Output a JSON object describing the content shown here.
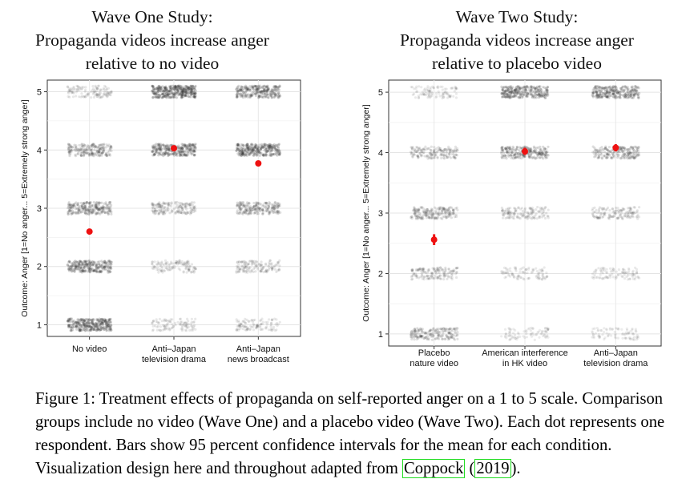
{
  "chart_data": [
    {
      "type": "scatter",
      "title_lines": [
        "Wave One Study:",
        "Propaganda videos increase anger",
        "relative to no video"
      ],
      "ylabel": "Outcome: Anger [1=No anger... 5=Extremely strong anger]",
      "xlabel": "",
      "ylim": [
        0.8,
        5.2
      ],
      "y_ticks": [
        "1",
        "2",
        "3",
        "4",
        "5"
      ],
      "grid": true,
      "categories": [
        {
          "label_lines": [
            "No video"
          ],
          "mean": 2.6,
          "ci": [
            2.56,
            2.64
          ],
          "darkness": {
            "1": 0.9,
            "2": 0.75,
            "3": 0.65,
            "4": 0.55,
            "5": 0.25
          }
        },
        {
          "label_lines": [
            "Anti–Japan",
            "television drama"
          ],
          "mean": 4.03,
          "ci": [
            3.99,
            4.07
          ],
          "darkness": {
            "1": 0.18,
            "2": 0.25,
            "3": 0.4,
            "4": 0.8,
            "5": 1.0
          }
        },
        {
          "label_lines": [
            "Anti–Japan",
            "news broadcast"
          ],
          "mean": 3.77,
          "ci": [
            3.74,
            3.81
          ],
          "darkness": {
            "1": 0.2,
            "2": 0.3,
            "3": 0.55,
            "4": 0.85,
            "5": 0.75
          }
        }
      ],
      "point_color": "#ee1111",
      "dot_color": "#333333"
    },
    {
      "type": "scatter",
      "title_lines": [
        "Wave Two Study:",
        "Propaganda videos increase anger",
        "relative to placebo video"
      ],
      "ylabel": "Outcome: Anger [1=No anger... 5=Extremely strong anger]",
      "xlabel": "",
      "ylim": [
        0.8,
        5.2
      ],
      "y_ticks": [
        "1",
        "2",
        "3",
        "4",
        "5"
      ],
      "grid": true,
      "categories": [
        {
          "label_lines": [
            "Placebo",
            "nature video"
          ],
          "mean": 2.56,
          "ci": [
            2.47,
            2.65
          ],
          "darkness": {
            "1": 0.5,
            "2": 0.35,
            "3": 0.5,
            "4": 0.4,
            "5": 0.15
          }
        },
        {
          "label_lines": [
            "American interference",
            "in HK video"
          ],
          "mean": 4.02,
          "ci": [
            3.96,
            4.08
          ],
          "darkness": {
            "1": 0.1,
            "2": 0.15,
            "3": 0.3,
            "4": 0.65,
            "5": 0.8
          }
        },
        {
          "label_lines": [
            "Anti–Japan",
            "television drama"
          ],
          "mean": 4.08,
          "ci": [
            4.02,
            4.14
          ],
          "darkness": {
            "1": 0.1,
            "2": 0.15,
            "3": 0.3,
            "4": 0.55,
            "5": 0.75
          }
        }
      ],
      "point_color": "#ee1111",
      "dot_color": "#333333"
    }
  ],
  "caption": {
    "text": "Figure 1: Treatment effects of propaganda on self-reported anger on a 1 to 5 scale. Comparison groups include no video (Wave One) and a placebo video (Wave Two). Each dot represents one respondent. Bars show 95 percent confidence intervals for the mean for each condition. Visualization design here and throughout adapted from ",
    "cite_author": "Coppock",
    "cite_open": " (",
    "cite_year": "2019",
    "cite_close": ")."
  }
}
